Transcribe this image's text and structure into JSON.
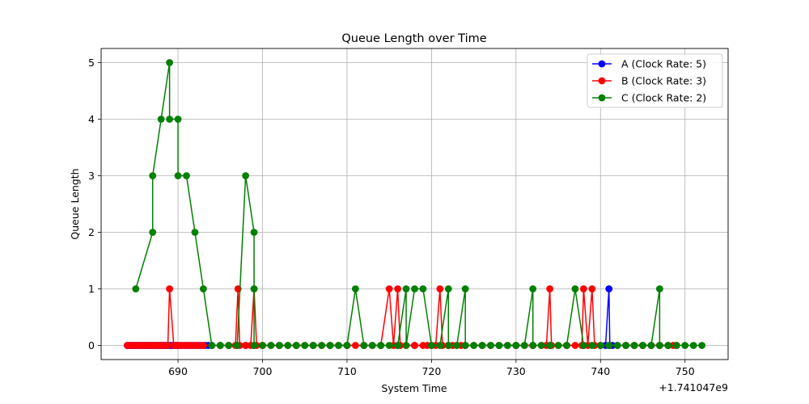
{
  "chart_data": {
    "type": "line",
    "title": "Queue Length over Time",
    "xlabel": "System Time",
    "ylabel": "Queue Length",
    "x_offset_label": "+1.741047e9",
    "xlim": [
      680.9,
      755.1
    ],
    "ylim": [
      -0.25,
      5.25
    ],
    "xticks": [
      690,
      700,
      710,
      720,
      730,
      740,
      750
    ],
    "yticks": [
      0,
      1,
      2,
      3,
      4,
      5
    ],
    "grid": true,
    "legend_position": "top-right",
    "series": [
      {
        "name": "A (Clock Rate: 5)",
        "color": "#0000ff",
        "points": [
          [
            684,
            0
          ],
          [
            684.2,
            0
          ],
          [
            684.4,
            0
          ],
          [
            684.6,
            0
          ],
          [
            684.8,
            0
          ],
          [
            685,
            0
          ],
          [
            685.2,
            0
          ],
          [
            685.4,
            0
          ],
          [
            685.6,
            0
          ],
          [
            685.8,
            0
          ],
          [
            686,
            0
          ],
          [
            686.2,
            0
          ],
          [
            686.4,
            0
          ],
          [
            686.6,
            0
          ],
          [
            686.8,
            0
          ],
          [
            687,
            0
          ],
          [
            687.2,
            0
          ],
          [
            687.4,
            0
          ],
          [
            687.6,
            0
          ],
          [
            687.8,
            0
          ],
          [
            688,
            0
          ],
          [
            688.2,
            0
          ],
          [
            688.4,
            0
          ],
          [
            688.6,
            0
          ],
          [
            688.8,
            0
          ],
          [
            689,
            0
          ],
          [
            689.2,
            0
          ],
          [
            689.4,
            0
          ],
          [
            689.6,
            0
          ],
          [
            689.8,
            0
          ],
          [
            690,
            0
          ],
          [
            690.4,
            0
          ],
          [
            690.8,
            0
          ],
          [
            691.2,
            0
          ],
          [
            691.6,
            0
          ],
          [
            692,
            0
          ],
          [
            692.4,
            0
          ],
          [
            692.8,
            0
          ],
          [
            693.2,
            0
          ],
          [
            693.6,
            0
          ],
          [
            694,
            0
          ],
          [
            695,
            0
          ],
          [
            696,
            0
          ],
          [
            697,
            0
          ],
          [
            698,
            0
          ],
          [
            699,
            0
          ],
          [
            700,
            0
          ],
          [
            702,
            0
          ],
          [
            704,
            0
          ],
          [
            706,
            0
          ],
          [
            708,
            0
          ],
          [
            710,
            0
          ],
          [
            712,
            0
          ],
          [
            714,
            0
          ],
          [
            716,
            0
          ],
          [
            718,
            0
          ],
          [
            720,
            0
          ],
          [
            722,
            0
          ],
          [
            724,
            0
          ],
          [
            726,
            0
          ],
          [
            728,
            0
          ],
          [
            730,
            0
          ],
          [
            732,
            0
          ],
          [
            734,
            0
          ],
          [
            736,
            0
          ],
          [
            738,
            0
          ],
          [
            740,
            0
          ],
          [
            740.6,
            0
          ],
          [
            741,
            1
          ],
          [
            741.1,
            0
          ],
          [
            741.4,
            0
          ],
          [
            742,
            0
          ],
          [
            743,
            0
          ],
          [
            744,
            0
          ],
          [
            745,
            0
          ],
          [
            746,
            0
          ],
          [
            747,
            0
          ],
          [
            748,
            0
          ],
          [
            749,
            0
          ]
        ]
      },
      {
        "name": "B (Clock Rate: 3)",
        "color": "#ff0000",
        "points": [
          [
            684,
            0
          ],
          [
            684.3,
            0
          ],
          [
            684.6,
            0
          ],
          [
            684.9,
            0
          ],
          [
            685.2,
            0
          ],
          [
            685.5,
            0
          ],
          [
            685.8,
            0
          ],
          [
            686.1,
            0
          ],
          [
            686.4,
            0
          ],
          [
            686.7,
            0
          ],
          [
            687,
            0
          ],
          [
            687.3,
            0
          ],
          [
            687.6,
            0
          ],
          [
            687.9,
            0
          ],
          [
            688.2,
            0
          ],
          [
            688.5,
            0
          ],
          [
            688.8,
            0
          ],
          [
            689,
            1
          ],
          [
            689.5,
            0
          ],
          [
            689.8,
            0
          ],
          [
            690.2,
            0
          ],
          [
            690.6,
            0
          ],
          [
            691,
            0
          ],
          [
            691.4,
            0
          ],
          [
            691.8,
            0
          ],
          [
            692.2,
            0
          ],
          [
            692.6,
            0
          ],
          [
            693,
            0
          ],
          [
            694,
            0
          ],
          [
            695,
            0
          ],
          [
            696,
            0
          ],
          [
            696.8,
            0
          ],
          [
            697.1,
            1
          ],
          [
            697.3,
            0
          ],
          [
            698,
            0
          ],
          [
            698.6,
            0
          ],
          [
            699,
            1
          ],
          [
            699.3,
            0
          ],
          [
            700,
            0
          ],
          [
            701,
            0
          ],
          [
            702,
            0
          ],
          [
            703,
            0
          ],
          [
            704,
            0
          ],
          [
            705,
            0
          ],
          [
            706,
            0
          ],
          [
            707,
            0
          ],
          [
            708,
            0
          ],
          [
            709,
            0
          ],
          [
            710,
            0
          ],
          [
            711,
            0
          ],
          [
            712,
            0
          ],
          [
            713,
            0
          ],
          [
            714,
            0
          ],
          [
            715,
            1
          ],
          [
            715.5,
            0
          ],
          [
            716,
            1
          ],
          [
            716.3,
            0
          ],
          [
            717,
            0
          ],
          [
            718,
            0
          ],
          [
            719,
            0
          ],
          [
            719.5,
            0
          ],
          [
            720,
            0
          ],
          [
            720.5,
            0
          ],
          [
            721,
            1
          ],
          [
            721.3,
            0
          ],
          [
            722,
            0
          ],
          [
            722.5,
            0
          ],
          [
            723,
            0
          ],
          [
            723.5,
            0
          ],
          [
            724,
            0
          ],
          [
            725,
            0
          ],
          [
            726,
            0
          ],
          [
            727,
            0
          ],
          [
            728,
            0
          ],
          [
            729,
            0
          ],
          [
            730,
            0
          ],
          [
            731,
            0
          ],
          [
            732,
            0
          ],
          [
            733,
            0
          ],
          [
            733.6,
            0
          ],
          [
            734,
            1
          ],
          [
            734.2,
            0
          ],
          [
            735,
            0
          ],
          [
            736,
            0
          ],
          [
            737,
            0
          ],
          [
            737.8,
            0
          ],
          [
            738,
            1
          ],
          [
            738.5,
            0
          ],
          [
            739,
            1
          ],
          [
            739.3,
            0
          ],
          [
            740,
            0
          ],
          [
            741,
            0
          ],
          [
            742,
            0
          ],
          [
            743,
            0
          ],
          [
            744,
            0
          ],
          [
            745,
            0
          ],
          [
            746,
            0
          ],
          [
            747,
            0
          ],
          [
            748,
            0
          ],
          [
            748.6,
            0
          ],
          [
            749,
            0
          ]
        ]
      },
      {
        "name": "C (Clock Rate: 2)",
        "color": "#008000",
        "points": [
          [
            685,
            1
          ],
          [
            687,
            2
          ],
          [
            687,
            3
          ],
          [
            688,
            4
          ],
          [
            689,
            5
          ],
          [
            689,
            4
          ],
          [
            690,
            4
          ],
          [
            690,
            3
          ],
          [
            691,
            3
          ],
          [
            692,
            2
          ],
          [
            693,
            1
          ],
          [
            694,
            0
          ],
          [
            695,
            0
          ],
          [
            696,
            0
          ],
          [
            697,
            0
          ],
          [
            698,
            3
          ],
          [
            699,
            2
          ],
          [
            699,
            1
          ],
          [
            699,
            0
          ],
          [
            700,
            0
          ],
          [
            701,
            0
          ],
          [
            702,
            0
          ],
          [
            703,
            0
          ],
          [
            704,
            0
          ],
          [
            705,
            0
          ],
          [
            706,
            0
          ],
          [
            707,
            0
          ],
          [
            708,
            0
          ],
          [
            709,
            0
          ],
          [
            710,
            0
          ],
          [
            711,
            1
          ],
          [
            712,
            0
          ],
          [
            713,
            0
          ],
          [
            714,
            0
          ],
          [
            715,
            0
          ],
          [
            716,
            0
          ],
          [
            717,
            1
          ],
          [
            717,
            0
          ],
          [
            718,
            1
          ],
          [
            719,
            1
          ],
          [
            720,
            0
          ],
          [
            721,
            0
          ],
          [
            722,
            1
          ],
          [
            722,
            0
          ],
          [
            723,
            0
          ],
          [
            724,
            1
          ],
          [
            724,
            0
          ],
          [
            725,
            0
          ],
          [
            726,
            0
          ],
          [
            727,
            0
          ],
          [
            728,
            0
          ],
          [
            729,
            0
          ],
          [
            730,
            0
          ],
          [
            731,
            0
          ],
          [
            732,
            1
          ],
          [
            732,
            0
          ],
          [
            733,
            0
          ],
          [
            734,
            0
          ],
          [
            735,
            0
          ],
          [
            736,
            0
          ],
          [
            737,
            1
          ],
          [
            738,
            0
          ],
          [
            739,
            0
          ],
          [
            740,
            0
          ],
          [
            741,
            0
          ],
          [
            742,
            0
          ],
          [
            743,
            0
          ],
          [
            744,
            0
          ],
          [
            745,
            0
          ],
          [
            746,
            0
          ],
          [
            747,
            1
          ],
          [
            747,
            0
          ],
          [
            748,
            0
          ],
          [
            749,
            0
          ],
          [
            750,
            0
          ],
          [
            751,
            0
          ],
          [
            752,
            0
          ]
        ]
      }
    ]
  }
}
